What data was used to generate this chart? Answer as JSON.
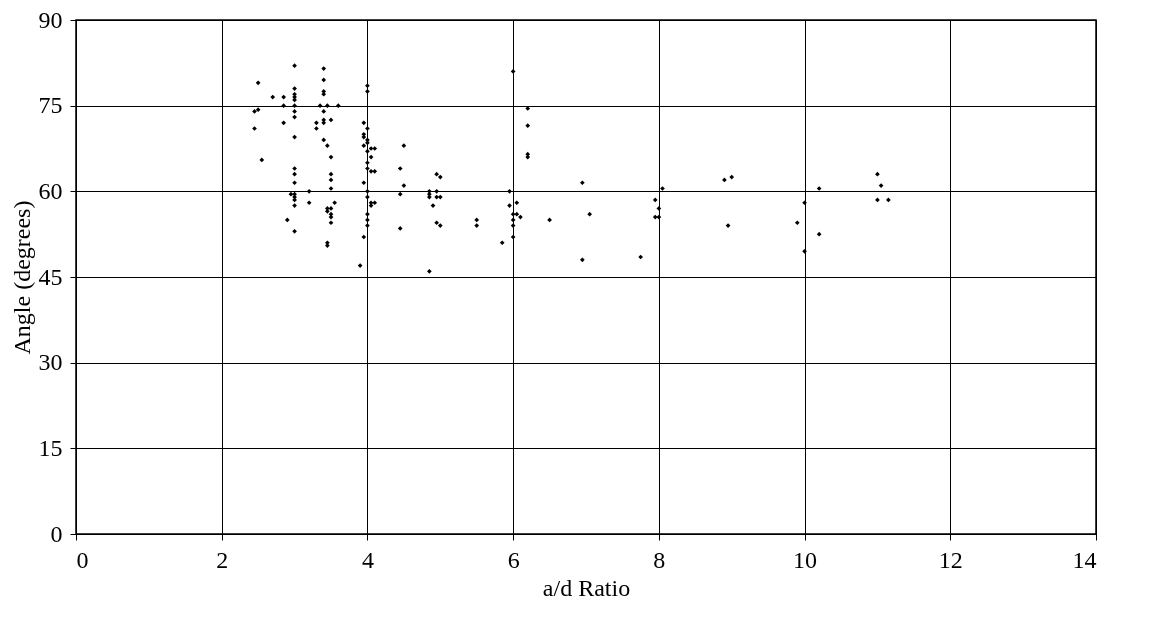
{
  "chart_data": {
    "type": "scatter",
    "xlabel": "a/d Ratio",
    "ylabel": "Angle (degrees)",
    "xlim": [
      0,
      14
    ],
    "xticks": [
      0,
      2,
      4,
      6,
      8,
      10,
      12,
      14
    ],
    "ylim": [
      0,
      90
    ],
    "yticks": [
      0,
      15,
      30,
      45,
      60,
      75,
      90
    ],
    "grid": true,
    "marker": "diamond",
    "series": [
      {
        "color": "#000000",
        "x": [
          2.45,
          2.5,
          2.5,
          2.45,
          2.55,
          2.7,
          2.85,
          2.85,
          2.85,
          3.0,
          3.0,
          3.0,
          3.0,
          3.0,
          3.0,
          3.0,
          3.0,
          3.0,
          3.0,
          3.0,
          3.0,
          3.0,
          3.0,
          3.0,
          3.0,
          2.9,
          3.0,
          2.95,
          3.2,
          3.2,
          3.3,
          3.3,
          3.4,
          3.4,
          3.4,
          3.4,
          3.4,
          3.4,
          3.4,
          3.4,
          3.45,
          3.45,
          3.45,
          3.45,
          3.45,
          3.45,
          3.35,
          3.5,
          3.5,
          3.5,
          3.5,
          3.5,
          3.55,
          3.5,
          3.5,
          3.5,
          3.5,
          3.6,
          4.0,
          4.0,
          3.95,
          3.95,
          3.95,
          4.0,
          4.0,
          3.95,
          4.05,
          4.0,
          4.05,
          4.0,
          4.0,
          4.05,
          3.95,
          4.0,
          4.0,
          4.05,
          4.05,
          4.0,
          4.0,
          4.0,
          3.95,
          3.9,
          4.0,
          4.1,
          4.1,
          4.1,
          4.45,
          4.45,
          4.45,
          4.5,
          4.5,
          4.85,
          4.85,
          4.85,
          4.9,
          4.85,
          4.95,
          4.95,
          4.95,
          4.95,
          5.0,
          5.0,
          5.0,
          5.5,
          5.5,
          5.85,
          5.95,
          5.95,
          6.0,
          6.0,
          6.0,
          6.0,
          6.0,
          6.05,
          6.05,
          6.1,
          6.2,
          6.2,
          6.2,
          6.2,
          6.5,
          6.95,
          6.95,
          7.05,
          7.75,
          7.95,
          7.95,
          8.0,
          8.0,
          8.05,
          8.9,
          9.0,
          8.95,
          9.9,
          10.0,
          10.0,
          10.2,
          10.2,
          11.0,
          11.0,
          11.05,
          11.15
        ],
        "values": [
          74,
          74.3,
          79,
          71,
          65.5,
          76.5,
          76.5,
          75,
          72,
          82,
          78,
          77,
          76.5,
          76,
          75,
          74,
          73,
          69.5,
          64,
          63,
          61.5,
          59.5,
          58.5,
          57.5,
          53,
          55,
          59,
          59.5,
          60,
          58,
          71,
          72,
          81.5,
          79.5,
          77.5,
          77,
          74,
          72.5,
          72,
          69,
          68,
          57,
          56.5,
          51,
          50.5,
          75,
          75,
          72.5,
          66,
          63,
          62,
          60.5,
          58,
          57,
          56,
          55.5,
          54.5,
          75,
          78.5,
          77.5,
          72,
          70,
          69.5,
          69,
          68.5,
          68,
          67.5,
          67,
          66,
          65,
          64,
          63.5,
          61.5,
          60,
          59,
          58,
          57.5,
          56,
          55,
          54,
          52,
          47,
          71,
          67.5,
          63.5,
          58,
          64,
          59.5,
          53.5,
          68,
          61,
          60,
          59.5,
          59,
          57.5,
          46,
          63,
          60,
          59,
          54.5,
          62.5,
          59,
          54,
          55,
          54,
          51,
          60,
          57.5,
          81,
          56,
          55,
          54,
          52,
          58,
          56,
          55.5,
          74.5,
          71.5,
          66.5,
          66,
          55,
          61.5,
          48,
          56,
          48.5,
          58.5,
          55.5,
          57,
          55.5,
          60.5,
          62,
          62.5,
          54,
          54.5,
          58,
          49.5,
          60.5,
          52.5,
          63,
          58.5,
          61,
          58.5
        ]
      }
    ]
  }
}
